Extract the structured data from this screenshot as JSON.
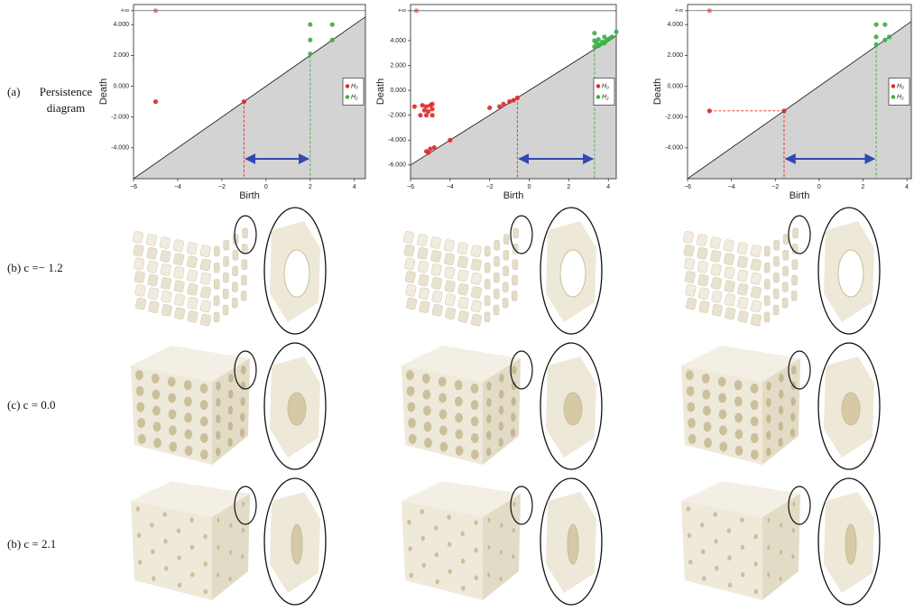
{
  "row_labels": [
    [
      "(a)",
      "Persistence",
      "diagram"
    ],
    [
      "(b) c =− 1.2"
    ],
    [
      "(c) c = 0.0"
    ],
    [
      "(b) c = 2.1"
    ]
  ],
  "chart_data": [
    {
      "type": "scatter",
      "x_label": "Birth",
      "y_label": "Death",
      "legend": "right",
      "xlim": [
        -6,
        4.5
      ],
      "ylim": [
        -6,
        5.3
      ],
      "xticks": [
        {
          "value": -6,
          "label": "−6"
        },
        {
          "value": -4,
          "label": "−4"
        },
        {
          "value": -2,
          "label": "−2"
        },
        0,
        2,
        4
      ],
      "yticks": [
        {
          "value": -4,
          "label": "-4.000"
        },
        {
          "value": -2,
          "label": "-2.000"
        },
        {
          "value": 0,
          "label": "0.000"
        },
        {
          "value": 2,
          "label": "2.000"
        },
        {
          "value": 4,
          "label": "4.000"
        },
        {
          "value": 4.9,
          "label": "+∞"
        }
      ],
      "series": [
        {
          "name": "H₀",
          "color": "#e02828",
          "x": [
            -5,
            -1,
            -5
          ],
          "values": [
            4.9,
            -1,
            -1
          ]
        },
        {
          "name": "H₂",
          "color": "#3cae45",
          "x": [
            2,
            2,
            3,
            3,
            2
          ],
          "values": [
            4,
            3,
            4,
            3,
            2.1
          ]
        }
      ]
    },
    {
      "type": "scatter",
      "x_label": "Birth",
      "y_label": "Death",
      "legend": "right",
      "xlim": [
        -6,
        4.4
      ],
      "ylim": [
        -7.1,
        6.9
      ],
      "xticks": [
        {
          "value": -6,
          "label": "−6"
        },
        {
          "value": -4,
          "label": "−4"
        },
        {
          "value": -2,
          "label": "−2"
        },
        0,
        2,
        4
      ],
      "yticks": [
        {
          "value": -6,
          "label": "-6.000"
        },
        {
          "value": -4,
          "label": "-4.000"
        },
        {
          "value": -2,
          "label": "-2.000"
        },
        {
          "value": 0,
          "label": "0.000"
        },
        {
          "value": 2,
          "label": "2.000"
        },
        {
          "value": 4,
          "label": "4.000"
        },
        {
          "value": 6.4,
          "label": "+∞"
        }
      ],
      "series": [
        {
          "name": "H₀",
          "color": "#e02828",
          "x": [
            -5.7,
            -0.6,
            -5.8,
            -5.4,
            -5.2,
            -5.0,
            -5.3,
            -5.1,
            -4.9,
            -5.2,
            -4.9,
            -5.5,
            -4.9,
            -1.5,
            -1.3,
            -1.0,
            -0.8,
            -2.0,
            -5.2,
            -5.0,
            -4.8,
            -5.1,
            -4.0
          ],
          "values": [
            6.4,
            -0.6,
            -1.3,
            -1.2,
            -1.3,
            -1.2,
            -1.6,
            -1.7,
            -1.5,
            -2.0,
            -2.0,
            -2.0,
            -1.1,
            -1.3,
            -1.1,
            -0.9,
            -0.8,
            -1.4,
            -4.9,
            -4.7,
            -4.6,
            -5.0,
            -4.0
          ]
        },
        {
          "name": "H₂",
          "color": "#3cae45",
          "x": [
            3.3,
            3.3,
            3.3,
            3.4,
            3.5,
            3.6,
            3.7,
            3.8,
            3.9,
            4.0,
            4.1,
            4.2,
            4.4,
            3.5,
            3.8
          ],
          "values": [
            3.5,
            4.0,
            4.6,
            3.8,
            3.6,
            3.7,
            3.9,
            3.8,
            4.0,
            4.1,
            4.2,
            4.3,
            4.7,
            4.1,
            4.3
          ]
        }
      ]
    },
    {
      "type": "scatter",
      "x_label": "Birth",
      "y_label": "Death",
      "legend": "right",
      "xlim": [
        -6,
        4.2
      ],
      "ylim": [
        -6,
        5.3
      ],
      "xticks": [
        {
          "value": -6,
          "label": "−6"
        },
        {
          "value": -4,
          "label": "−4"
        },
        {
          "value": -2,
          "label": "−2"
        },
        0,
        2,
        4
      ],
      "yticks": [
        {
          "value": -4,
          "label": "-4.000"
        },
        {
          "value": -2,
          "label": "-2.000"
        },
        {
          "value": 0,
          "label": "0.000"
        },
        {
          "value": 2,
          "label": "2.000"
        },
        {
          "value": 4,
          "label": "4.000"
        },
        {
          "value": 4.9,
          "label": "+∞"
        }
      ],
      "series": [
        {
          "name": "H₀",
          "color": "#e02828",
          "x": [
            -5,
            -5,
            -1.6
          ],
          "values": [
            4.9,
            -1.6,
            -1.6
          ]
        },
        {
          "name": "H₂",
          "color": "#3cae45",
          "x": [
            2.6,
            3.0,
            2.6,
            3.0,
            2.6,
            3.2
          ],
          "values": [
            4.0,
            4.0,
            3.2,
            3.0,
            2.7,
            3.2
          ]
        }
      ]
    }
  ]
}
